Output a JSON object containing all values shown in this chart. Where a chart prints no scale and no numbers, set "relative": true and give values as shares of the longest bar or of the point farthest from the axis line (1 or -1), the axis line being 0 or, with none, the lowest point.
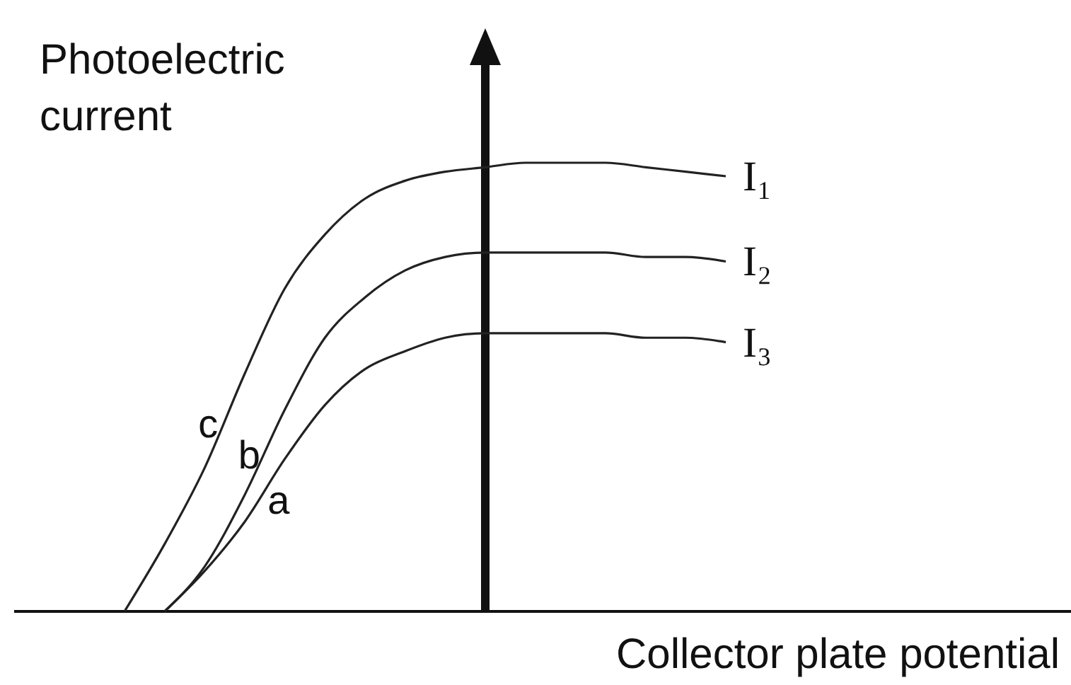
{
  "chart_data": {
    "type": "line",
    "relative": true,
    "xlabel": "Collector plate potential",
    "ylabel": "Photoelectric current",
    "categories": [
      null,
      null,
      null,
      null,
      null,
      null,
      null,
      null,
      null,
      null,
      null,
      null,
      null,
      null,
      null,
      null
    ],
    "legend": false,
    "marker": "none",
    "line_style": "solid",
    "series": [
      {
        "name": "I₁",
        "color": "#222222",
        "values": [
          0,
          0.15,
          0.32,
          0.53,
          0.72,
          0.84,
          0.92,
          0.96,
          0.98,
          0.99,
          1,
          1,
          1,
          0.99,
          0.98,
          0.97
        ]
      },
      {
        "name": "I₂",
        "color": "#222222",
        "values": [
          null,
          0,
          0.1,
          0.26,
          0.45,
          0.61,
          0.7,
          0.76,
          0.79,
          0.8,
          0.8,
          0.8,
          0.8,
          0.79,
          0.79,
          0.78
        ]
      },
      {
        "name": "I₃",
        "color": "#222222",
        "values": [
          null,
          0,
          0.09,
          0.2,
          0.34,
          0.46,
          0.54,
          0.58,
          0.61,
          0.62,
          0.62,
          0.62,
          0.62,
          0.61,
          0.61,
          0.6
        ]
      }
    ],
    "annotations": [
      "a",
      "b",
      "c"
    ]
  }
}
